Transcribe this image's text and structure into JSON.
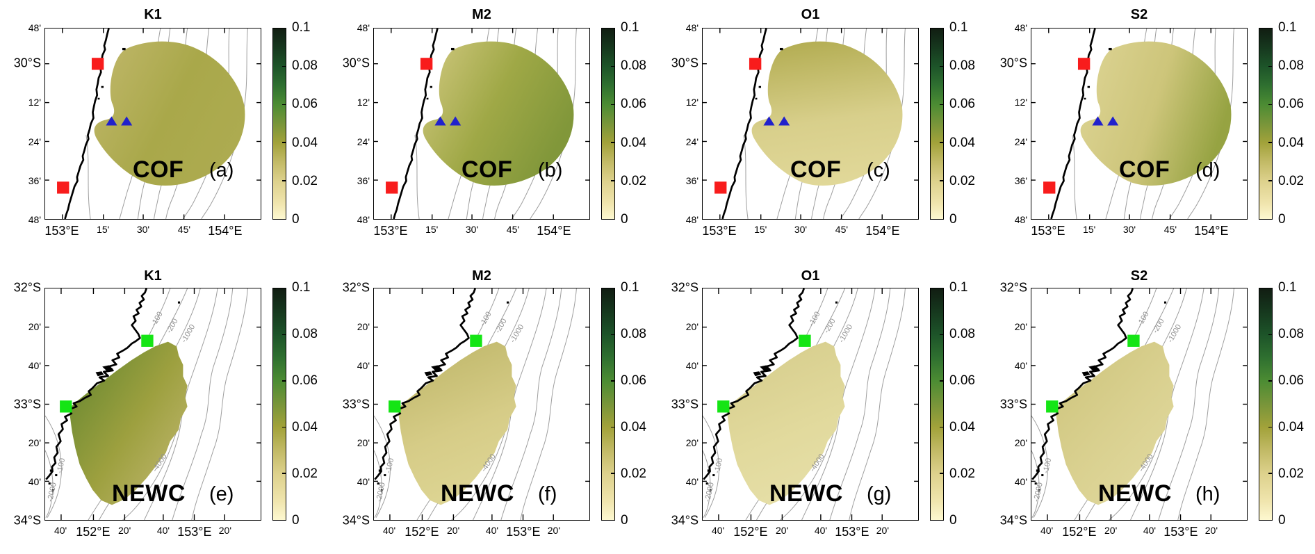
{
  "figure": {
    "background": "#ffffff",
    "n_rows": 2,
    "n_cols": 4
  },
  "colorbar": {
    "ticks": [
      "0.1",
      "0.08",
      "0.06",
      "0.04",
      "0.02",
      "0"
    ],
    "tick_fractions_from_top": [
      0,
      0.2,
      0.4,
      0.6,
      0.8,
      1.0
    ],
    "gradient_stops": [
      "#fdf8d0 0%",
      "#f0e5ae 8%",
      "#ddd18c 20%",
      "#c2ba66 30%",
      "#a2a23a 40%",
      "#78953a 50%",
      "#4c8c33 60%",
      "#2f7030 70%",
      "#1d5429 80%",
      "#16381e 90%",
      "#111d12 100%"
    ]
  },
  "rows": [
    {
      "region_label": "COF",
      "y_ticks": [
        {
          "label": "48'",
          "pos": 0
        },
        {
          "label": "30°S",
          "pos": 18.5
        },
        {
          "label": "12'",
          "pos": 38.9
        },
        {
          "label": "24'",
          "pos": 59.3
        },
        {
          "label": "36'",
          "pos": 79.6
        },
        {
          "label": "48'",
          "pos": 100
        }
      ],
      "x_ticks": [
        {
          "label": "153°E",
          "pos": 8
        },
        {
          "label": "15'",
          "pos": 27
        },
        {
          "label": "30'",
          "pos": 45.5
        },
        {
          "label": "45'",
          "pos": 64.4
        },
        {
          "label": "154°E",
          "pos": 83.3
        }
      ],
      "markers": {
        "square_color": "#f81c1c",
        "triangle_color": "#2121cc"
      },
      "contour_labels": [],
      "panels": [
        {
          "title": "K1",
          "letter": "(a)",
          "blob": {
            "c0": "#c0b76a",
            "c1": "#a9a84a",
            "c2": "#adab50",
            "x1": 0,
            "y1": 0.1,
            "x2": 1,
            "y2": 0.6
          }
        },
        {
          "title": "M2",
          "letter": "(b)",
          "blob": {
            "c0": "#d2c981",
            "c1": "#9fa846",
            "c2": "#81973a",
            "x1": 0,
            "y1": 0,
            "x2": 1,
            "y2": 0.5
          }
        },
        {
          "title": "O1",
          "letter": "(c)",
          "blob": {
            "c0": "#b4ae54",
            "c1": "#d8cf8b",
            "c2": "#e1d899",
            "x1": 0.4,
            "y1": 0,
            "x2": 0.55,
            "y2": 1
          }
        },
        {
          "title": "S2",
          "letter": "(d)",
          "blob": {
            "c0": "#ddd494",
            "c1": "#cdc57a",
            "c2": "#96a342",
            "x1": 0,
            "y1": 0.1,
            "x2": 1,
            "y2": 0.4
          }
        }
      ]
    },
    {
      "region_label": "NEWC",
      "y_ticks": [
        {
          "label": "32°S",
          "pos": 0
        },
        {
          "label": "20'",
          "pos": 16.7
        },
        {
          "label": "40'",
          "pos": 33.3
        },
        {
          "label": "33°S",
          "pos": 50
        },
        {
          "label": "20'",
          "pos": 66.7
        },
        {
          "label": "40'",
          "pos": 83.3
        },
        {
          "label": "34°S",
          "pos": 100
        }
      ],
      "x_ticks": [
        {
          "label": "40'",
          "pos": 7.4
        },
        {
          "label": "152°E",
          "pos": 22.4
        },
        {
          "label": "20'",
          "pos": 36.9
        },
        {
          "label": "40'",
          "pos": 54.8
        },
        {
          "label": "153°E",
          "pos": 69.2
        },
        {
          "label": "20'",
          "pos": 83.3
        }
      ],
      "markers": {
        "square_color": "#15e515",
        "triangle_color": "#2121cc"
      },
      "contour_labels": [
        {
          "text": "-100",
          "x": 51.5,
          "y": 13,
          "rot": -60
        },
        {
          "text": "-200",
          "x": 58.5,
          "y": 16,
          "rot": -60
        },
        {
          "text": "-1000",
          "x": 66,
          "y": 19.5,
          "rot": -60
        },
        {
          "text": "-4000",
          "x": 53,
          "y": 75,
          "rot": -56
        },
        {
          "text": "-100",
          "x": 7.5,
          "y": 76,
          "rot": -78
        },
        {
          "text": "-2000",
          "x": 3.2,
          "y": 87.5,
          "rot": -78
        }
      ],
      "panels": [
        {
          "title": "K1",
          "letter": "(e)",
          "blob": {
            "c0": "#5f842e",
            "c1": "#9da03f",
            "c2": "#c2b871",
            "x1": 0,
            "y1": 0,
            "x2": 1,
            "y2": 0.9
          }
        },
        {
          "title": "M2",
          "letter": "(f)",
          "blob": {
            "c0": "#bfb76a",
            "c1": "#d6cc87",
            "c2": "#ded695",
            "x1": 0.3,
            "y1": 0,
            "x2": 0.6,
            "y2": 1
          }
        },
        {
          "title": "O1",
          "letter": "(g)",
          "blob": {
            "c0": "#d6cd8c",
            "c1": "#e1d99c",
            "c2": "#e6dfa8",
            "x1": 0.3,
            "y1": 0,
            "x2": 0.6,
            "y2": 1
          }
        },
        {
          "title": "S2",
          "letter": "(h)",
          "blob": {
            "c0": "#ccc37a",
            "c1": "#d9d08f",
            "c2": "#e1d99e",
            "x1": 0,
            "y1": 0,
            "x2": 0.8,
            "y2": 1
          }
        }
      ]
    }
  ],
  "chart_data": {
    "type": "heatmap",
    "description_visible_text_only": true,
    "value_range": [
      0,
      0.1
    ],
    "colorbar_ticks": [
      0,
      0.02,
      0.04,
      0.06,
      0.08,
      0.1
    ],
    "colormap_stops": [
      [
        "0.00",
        "#fdf8d0"
      ],
      [
        "0.02",
        "#ddd18c"
      ],
      [
        "0.04",
        "#a2a23a"
      ],
      [
        "0.06",
        "#4c8c33"
      ],
      [
        "0.08",
        "#1d5429"
      ],
      [
        "0.10",
        "#111d12"
      ]
    ],
    "cof_axes": {
      "x_tick_labels": [
        "153°E",
        "15'",
        "30'",
        "45'",
        "154°E"
      ],
      "y_tick_labels": [
        "48'",
        "30°S",
        "12'",
        "24'",
        "36'",
        "48'"
      ]
    },
    "newc_axes": {
      "x_tick_labels": [
        "40'",
        "152°E",
        "20'",
        "40'",
        "153°E",
        "20'"
      ],
      "y_tick_labels": [
        "32°S",
        "20'",
        "40'",
        "33°S",
        "20'",
        "40'",
        "34°S"
      ]
    },
    "bathymetry_contour_labels_newc": [
      "-100",
      "-200",
      "-1000",
      "-2000",
      "-4000"
    ],
    "panels": [
      {
        "letter": "(a)",
        "region": "COF",
        "constituent": "K1",
        "approx_field_mean": 0.03,
        "approx_field_range": [
          0.02,
          0.045
        ]
      },
      {
        "letter": "(b)",
        "region": "COF",
        "constituent": "M2",
        "approx_field_mean": 0.035,
        "approx_field_range": [
          0.015,
          0.055
        ]
      },
      {
        "letter": "(c)",
        "region": "COF",
        "constituent": "O1",
        "approx_field_mean": 0.018,
        "approx_field_range": [
          0.01,
          0.035
        ]
      },
      {
        "letter": "(d)",
        "region": "COF",
        "constituent": "S2",
        "approx_field_mean": 0.022,
        "approx_field_range": [
          0.01,
          0.04
        ]
      },
      {
        "letter": "(e)",
        "region": "NEWC",
        "constituent": "K1",
        "approx_field_mean": 0.035,
        "approx_field_range": [
          0.015,
          0.06
        ]
      },
      {
        "letter": "(f)",
        "region": "NEWC",
        "constituent": "M2",
        "approx_field_mean": 0.016,
        "approx_field_range": [
          0.008,
          0.03
        ]
      },
      {
        "letter": "(g)",
        "region": "NEWC",
        "constituent": "O1",
        "approx_field_mean": 0.012,
        "approx_field_range": [
          0.005,
          0.022
        ]
      },
      {
        "letter": "(h)",
        "region": "NEWC",
        "constituent": "S2",
        "approx_field_mean": 0.014,
        "approx_field_range": [
          0.008,
          0.025
        ]
      }
    ],
    "markers": {
      "cof_red_squares_xy_pct": [
        [
          24.4,
          18.5
        ],
        [
          8.3,
          83.6
        ]
      ],
      "cof_blue_triangles_xy_pct": [
        [
          30.8,
          48.4
        ],
        [
          37.8,
          48.4
        ]
      ],
      "newc_green_squares_xy_pct": [
        [
          47.4,
          22.6
        ],
        [
          9.6,
          51.0
        ]
      ]
    }
  }
}
